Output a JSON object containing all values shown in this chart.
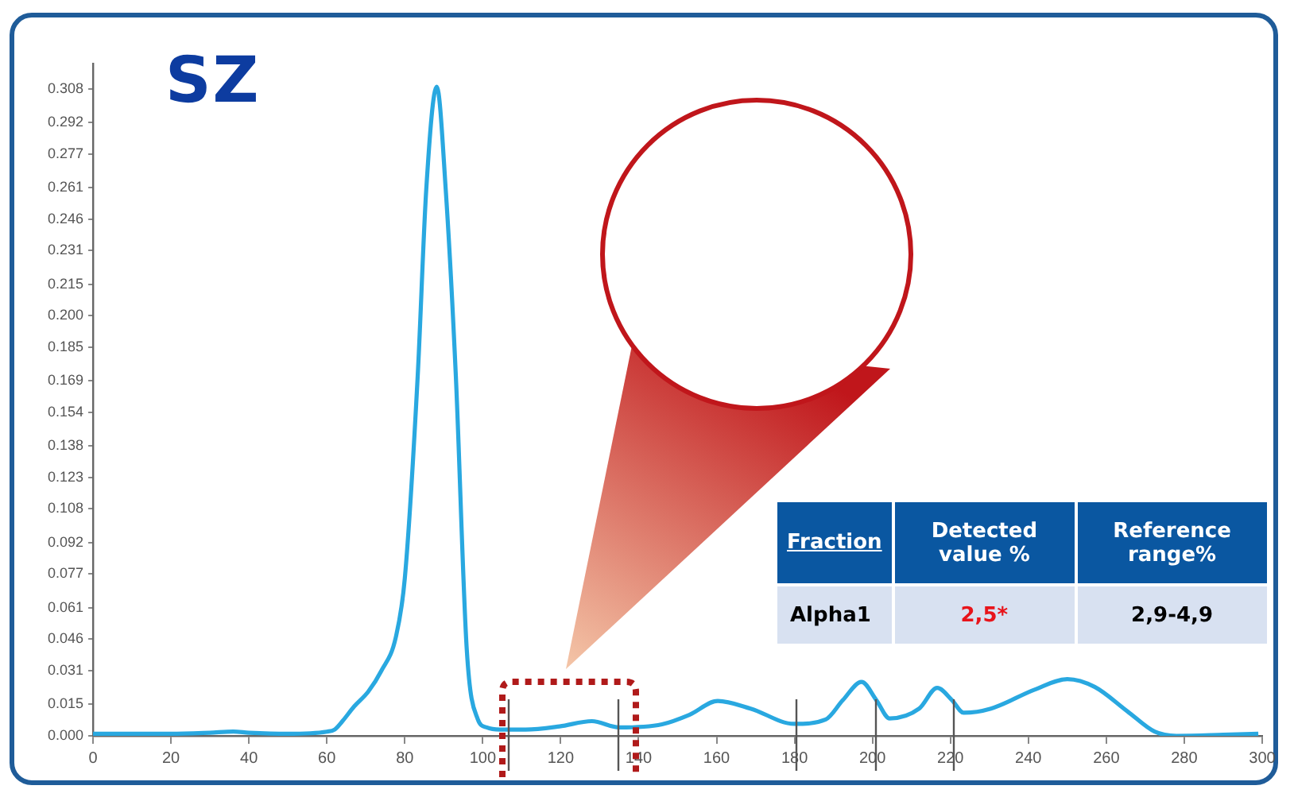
{
  "chart_data": {
    "type": "line",
    "title": "SZ",
    "series": [
      {
        "color": "#29a8e0",
        "x": [
          0,
          10,
          20,
          30,
          36,
          40,
          50,
          60,
          62,
          64,
          67,
          70.6,
          74,
          77.7,
          80,
          83.3,
          85.5,
          88.2,
          90.5,
          93.1,
          95.9,
          98.7,
          101,
          104.4,
          111,
          119.7,
          128,
          135,
          146,
          153,
          160.3,
          168.7,
          179.9,
          188,
          192.4,
          197.2,
          201,
          204.4,
          212,
          216.6,
          220.4,
          223.4,
          230.4,
          241.6,
          250,
          257,
          265.4,
          272.4,
          278,
          290,
          299
        ],
        "values": [
          0.001,
          0.001,
          0.001,
          0.0015,
          0.002,
          0.0015,
          0.001,
          0.002,
          0.003,
          0.007,
          0.014,
          0.021,
          0.031,
          0.047,
          0.075,
          0.171,
          0.26,
          0.309,
          0.26,
          0.171,
          0.041,
          0.008,
          0.004,
          0.003,
          0.003,
          0.0045,
          0.007,
          0.004,
          0.0055,
          0.01,
          0.0166,
          0.013,
          0.0057,
          0.0078,
          0.017,
          0.0257,
          0.017,
          0.0083,
          0.013,
          0.0228,
          0.017,
          0.011,
          0.013,
          0.022,
          0.027,
          0.0233,
          0.0117,
          0.002,
          0,
          0.0005,
          0.001
        ]
      }
    ],
    "xlim": [
      0,
      300
    ],
    "xticks": [
      0,
      20,
      40,
      60,
      80,
      100,
      120,
      140,
      160,
      180,
      200,
      220,
      240,
      260,
      280,
      300
    ],
    "ylim": [
      0,
      0.32
    ],
    "yticks": [
      {
        "value": 0,
        "label": "0.000"
      },
      0.015,
      0.031,
      0.046,
      0.061,
      0.077,
      0.092,
      0.108,
      0.123,
      0.138,
      0.154,
      0.169,
      0.185,
      {
        "value": 0.2,
        "label": "0.200"
      },
      0.215,
      0.231,
      0.246,
      0.261,
      0.277,
      0.292,
      0.308
    ],
    "annotations": [
      "Fraction",
      "Detected value %",
      "Reference range%",
      "Alpha1",
      "2,5*",
      "2,9-4,9"
    ],
    "grid": false,
    "legend": false,
    "marker": "none",
    "line_style": "solid"
  }
}
